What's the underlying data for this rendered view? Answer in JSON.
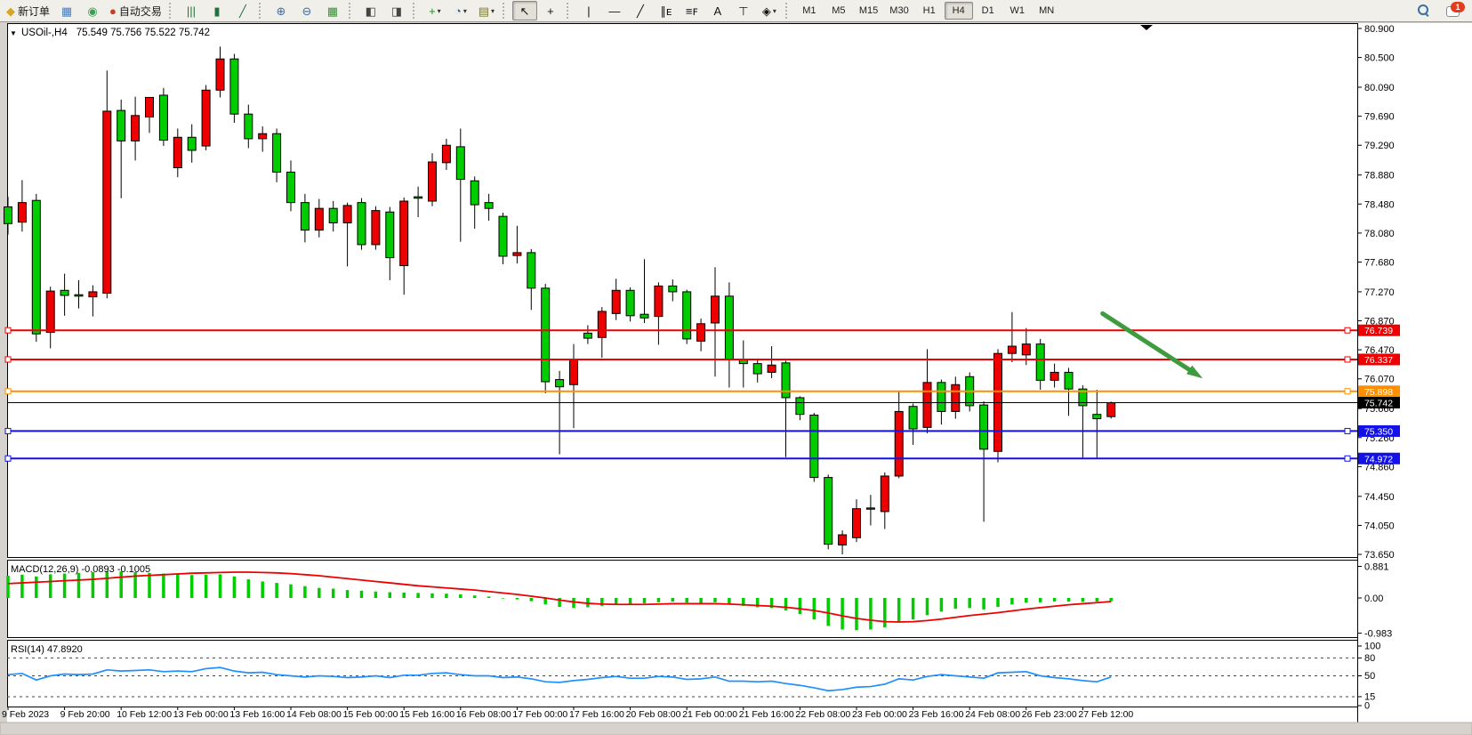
{
  "toolbar": {
    "items": [
      {
        "name": "new-order",
        "glyph": "◆",
        "color": "#d9a520",
        "label": "新订单"
      },
      {
        "name": "market-watch",
        "glyph": "▦",
        "color": "#4a7ebb"
      },
      {
        "name": "data-signal",
        "glyph": "◉",
        "color": "#3aa153"
      },
      {
        "name": "auto-trading",
        "glyph": "●",
        "color": "#cc3a22",
        "label": "自动交易"
      },
      {
        "sep": true
      },
      {
        "name": "bar-chart",
        "glyph": "|||",
        "color": "#20733e"
      },
      {
        "name": "candlestick-chart",
        "glyph": "▮",
        "color": "#20733e"
      },
      {
        "name": "line-chart",
        "glyph": "╱",
        "color": "#20733e"
      },
      {
        "sep": true
      },
      {
        "name": "zoom-in",
        "glyph": "⊕",
        "color": "#3a6ea5"
      },
      {
        "name": "zoom-out",
        "glyph": "⊖",
        "color": "#3a6ea5"
      },
      {
        "name": "tile-windows",
        "glyph": "▦",
        "color": "#3f8a3f"
      },
      {
        "sep": true
      },
      {
        "name": "auto-scroll",
        "glyph": "◧",
        "color": "#444444"
      },
      {
        "name": "chart-shift",
        "glyph": "◨",
        "color": "#444444"
      },
      {
        "sep": true
      },
      {
        "name": "add-indicator",
        "glyph": "+",
        "color": "#169416",
        "dropdown": true
      },
      {
        "name": "period-selector",
        "glyph": "◔",
        "color": "#2f5faa",
        "dropdown": true
      },
      {
        "name": "chart-template",
        "glyph": "▤",
        "color": "#777733",
        "dropdown": true
      },
      {
        "sep": true
      },
      {
        "name": "cursor-tool",
        "glyph": "↖",
        "color": "#111111",
        "pressed": true
      },
      {
        "name": "crosshair-tool",
        "glyph": "+",
        "color": "#111111"
      },
      {
        "sep": true
      },
      {
        "name": "vertical-line-tool",
        "glyph": "|",
        "color": "#111111"
      },
      {
        "name": "horizontal-line-tool",
        "glyph": "—",
        "color": "#111111"
      },
      {
        "name": "trendline-tool",
        "glyph": "╱",
        "color": "#111111"
      },
      {
        "name": "channel-tool",
        "glyph": "∥ᴇ",
        "color": "#111111"
      },
      {
        "name": "fibonacci-tool",
        "glyph": "≡ꜰ",
        "color": "#111111"
      },
      {
        "name": "text-tool",
        "glyph": "A",
        "color": "#111111"
      },
      {
        "name": "text-label-tool",
        "glyph": "⊤",
        "color": "#111111"
      },
      {
        "name": "shapes-tool",
        "glyph": "◈",
        "color": "#111111",
        "dropdown": true
      },
      {
        "sep": true
      }
    ],
    "timeframes": [
      "M1",
      "M5",
      "M15",
      "M30",
      "H1",
      "H4",
      "D1",
      "W1",
      "MN"
    ],
    "active_timeframe": "H4",
    "notification_badge": "1"
  },
  "chart_data": {
    "type": "candlestick",
    "symbol_period": "USOil-,H4",
    "ohlc_display": "75.549 75.756 75.522 75.742",
    "up_color": "#ee0000",
    "down_color": "#00cc00",
    "wick_color": "#000000",
    "price_axis_ticks": [
      80.9,
      80.5,
      80.09,
      79.69,
      79.29,
      78.88,
      78.48,
      78.08,
      77.68,
      77.27,
      76.87,
      76.47,
      76.07,
      75.66,
      75.26,
      74.86,
      74.45,
      74.05,
      73.65
    ],
    "time_axis_labels": [
      "9 Feb 2023",
      "9 Feb 20:00",
      "10 Feb 12:00",
      "13 Feb 00:00",
      "13 Feb 16:00",
      "14 Feb 08:00",
      "15 Feb 00:00",
      "15 Feb 16:00",
      "16 Feb 08:00",
      "17 Feb 00:00",
      "17 Feb 16:00",
      "20 Feb 08:00",
      "21 Feb 00:00",
      "21 Feb 16:00",
      "22 Feb 08:00",
      "23 Feb 00:00",
      "23 Feb 16:00",
      "24 Feb 08:00",
      "26 Feb 23:00",
      "27 Feb 12:00"
    ],
    "candles": [
      [
        78.44,
        78.58,
        78.06,
        78.21
      ],
      [
        78.23,
        78.81,
        78.1,
        78.5
      ],
      [
        78.53,
        78.62,
        76.58,
        76.69
      ],
      [
        76.71,
        77.34,
        76.49,
        77.28
      ],
      [
        77.29,
        77.52,
        76.94,
        77.22
      ],
      [
        77.23,
        77.43,
        77.04,
        77.21
      ],
      [
        77.2,
        77.36,
        76.93,
        77.27
      ],
      [
        77.25,
        80.32,
        77.18,
        79.76
      ],
      [
        79.77,
        79.92,
        78.56,
        79.35
      ],
      [
        79.35,
        79.96,
        79.08,
        79.7
      ],
      [
        79.68,
        79.94,
        79.46,
        79.95
      ],
      [
        79.98,
        80.08,
        79.28,
        79.36
      ],
      [
        78.98,
        79.52,
        78.85,
        79.4
      ],
      [
        79.4,
        79.58,
        79.05,
        79.22
      ],
      [
        79.28,
        80.12,
        79.22,
        80.05
      ],
      [
        80.05,
        80.65,
        79.95,
        80.48
      ],
      [
        80.48,
        80.55,
        79.6,
        79.72
      ],
      [
        79.72,
        79.85,
        79.25,
        79.38
      ],
      [
        79.38,
        79.55,
        79.2,
        79.45
      ],
      [
        79.45,
        79.52,
        78.78,
        78.92
      ],
      [
        78.92,
        79.08,
        78.38,
        78.5
      ],
      [
        78.5,
        78.62,
        77.95,
        78.12
      ],
      [
        78.12,
        78.55,
        78.02,
        78.42
      ],
      [
        78.42,
        78.52,
        78.1,
        78.22
      ],
      [
        78.22,
        78.5,
        77.62,
        78.46
      ],
      [
        78.5,
        78.56,
        77.85,
        77.92
      ],
      [
        77.92,
        78.45,
        77.85,
        78.39
      ],
      [
        78.37,
        78.44,
        77.43,
        77.74
      ],
      [
        77.63,
        78.57,
        77.23,
        78.52
      ],
      [
        78.58,
        78.72,
        78.3,
        78.56
      ],
      [
        78.52,
        79.18,
        78.45,
        79.06
      ],
      [
        79.05,
        79.38,
        78.95,
        79.29
      ],
      [
        79.27,
        79.52,
        77.96,
        78.82
      ],
      [
        78.8,
        78.86,
        78.14,
        78.47
      ],
      [
        78.5,
        78.62,
        78.25,
        78.42
      ],
      [
        78.31,
        78.36,
        77.65,
        77.76
      ],
      [
        77.77,
        78.18,
        77.66,
        77.81
      ],
      [
        77.81,
        77.86,
        77.02,
        77.32
      ],
      [
        77.32,
        77.38,
        75.87,
        76.03
      ],
      [
        76.06,
        76.18,
        75.03,
        75.96
      ],
      [
        75.99,
        76.55,
        75.39,
        76.33
      ],
      [
        76.7,
        76.81,
        76.55,
        76.63
      ],
      [
        76.64,
        77.06,
        76.36,
        77.0
      ],
      [
        76.97,
        77.45,
        76.88,
        77.29
      ],
      [
        77.29,
        77.33,
        76.86,
        76.94
      ],
      [
        76.96,
        77.72,
        76.84,
        76.91
      ],
      [
        76.93,
        77.4,
        76.54,
        77.35
      ],
      [
        77.35,
        77.44,
        77.14,
        77.27
      ],
      [
        77.27,
        77.3,
        76.55,
        76.62
      ],
      [
        76.59,
        76.9,
        76.45,
        76.83
      ],
      [
        76.84,
        77.61,
        76.1,
        77.21
      ],
      [
        77.21,
        77.4,
        75.95,
        76.33
      ],
      [
        76.33,
        76.6,
        75.95,
        76.28
      ],
      [
        76.28,
        76.35,
        76.02,
        76.14
      ],
      [
        76.16,
        76.52,
        76.08,
        76.26
      ],
      [
        76.29,
        76.32,
        74.99,
        75.81
      ],
      [
        75.81,
        75.83,
        75.5,
        75.58
      ],
      [
        75.57,
        75.6,
        74.65,
        74.71
      ],
      [
        74.71,
        74.75,
        73.72,
        73.79
      ],
      [
        73.78,
        73.98,
        73.65,
        73.92
      ],
      [
        73.88,
        74.41,
        73.82,
        74.28
      ],
      [
        74.28,
        74.47,
        74.05,
        74.29
      ],
      [
        74.24,
        74.78,
        74.0,
        74.73
      ],
      [
        74.73,
        75.9,
        74.7,
        75.62
      ],
      [
        75.69,
        75.73,
        75.16,
        75.38
      ],
      [
        75.4,
        76.48,
        75.32,
        76.02
      ],
      [
        76.02,
        76.06,
        75.44,
        75.62
      ],
      [
        75.62,
        76.1,
        75.52,
        75.99
      ],
      [
        76.1,
        76.16,
        75.62,
        75.7
      ],
      [
        75.71,
        75.76,
        74.1,
        75.1
      ],
      [
        75.07,
        76.48,
        74.92,
        76.42
      ],
      [
        76.42,
        76.99,
        76.3,
        76.52
      ],
      [
        76.4,
        76.77,
        76.26,
        76.55
      ],
      [
        76.55,
        76.62,
        75.92,
        76.05
      ],
      [
        76.05,
        76.28,
        75.95,
        76.16
      ],
      [
        76.16,
        76.22,
        75.56,
        75.93
      ],
      [
        75.93,
        75.98,
        74.98,
        75.7
      ],
      [
        75.58,
        75.92,
        74.97,
        75.52
      ],
      [
        75.549,
        75.756,
        75.522,
        75.742
      ]
    ],
    "hlines": [
      {
        "price": 76.739,
        "color": "#ee0000",
        "label": "76.739"
      },
      {
        "price": 76.337,
        "color": "#ee0000",
        "label": "76.337"
      },
      {
        "price": 75.898,
        "color": "#ff8f00",
        "label": "75.898"
      },
      {
        "price": 75.35,
        "color": "#1212e8",
        "label": "75.350"
      },
      {
        "price": 74.972,
        "color": "#1212e8",
        "label": "74.972"
      }
    ],
    "price_line": {
      "price": 75.742,
      "color": "#000000",
      "label": "75.742"
    },
    "arrow": {
      "i1": 77.4,
      "p1": 76.97,
      "i2": 83.9,
      "p2": 76.15,
      "color": "#3e9b3e"
    },
    "macd": {
      "label": "MACD(12,26,9)",
      "values_text": "-0.0893 -0.1005",
      "axis_ticks": [
        {
          "v": 0.881,
          "t": "0.881"
        },
        {
          "v": 0,
          "t": "0.00"
        },
        {
          "v": -0.983,
          "t": "-0.983"
        }
      ],
      "histogram_color": "#00cc00",
      "signal_color": "#ee0000",
      "histogram": [
        0.62,
        0.65,
        0.6,
        0.66,
        0.68,
        0.7,
        0.72,
        0.75,
        0.74,
        0.72,
        0.7,
        0.68,
        0.66,
        0.64,
        0.65,
        0.66,
        0.6,
        0.52,
        0.46,
        0.42,
        0.38,
        0.33,
        0.28,
        0.26,
        0.22,
        0.2,
        0.18,
        0.16,
        0.15,
        0.14,
        0.13,
        0.12,
        0.1,
        0.07,
        0.04,
        0.0,
        -0.04,
        -0.09,
        -0.18,
        -0.25,
        -0.28,
        -0.26,
        -0.22,
        -0.18,
        -0.16,
        -0.15,
        -0.12,
        -0.1,
        -0.13,
        -0.14,
        -0.12,
        -0.18,
        -0.22,
        -0.26,
        -0.28,
        -0.35,
        -0.45,
        -0.6,
        -0.78,
        -0.88,
        -0.9,
        -0.88,
        -0.82,
        -0.68,
        -0.6,
        -0.48,
        -0.38,
        -0.3,
        -0.28,
        -0.32,
        -0.25,
        -0.18,
        -0.13,
        -0.12,
        -0.1,
        -0.1,
        -0.11,
        -0.1,
        -0.09
      ],
      "signal": [
        0.4,
        0.42,
        0.44,
        0.46,
        0.48,
        0.5,
        0.52,
        0.55,
        0.58,
        0.61,
        0.63,
        0.65,
        0.67,
        0.69,
        0.7,
        0.71,
        0.72,
        0.72,
        0.71,
        0.7,
        0.68,
        0.65,
        0.62,
        0.58,
        0.54,
        0.5,
        0.46,
        0.42,
        0.38,
        0.34,
        0.31,
        0.28,
        0.25,
        0.22,
        0.18,
        0.14,
        0.1,
        0.05,
        0.0,
        -0.06,
        -0.11,
        -0.15,
        -0.17,
        -0.18,
        -0.18,
        -0.18,
        -0.17,
        -0.16,
        -0.16,
        -0.16,
        -0.16,
        -0.17,
        -0.19,
        -0.21,
        -0.23,
        -0.26,
        -0.3,
        -0.35,
        -0.42,
        -0.5,
        -0.57,
        -0.62,
        -0.66,
        -0.67,
        -0.66,
        -0.63,
        -0.59,
        -0.54,
        -0.49,
        -0.45,
        -0.41,
        -0.36,
        -0.31,
        -0.27,
        -0.23,
        -0.19,
        -0.16,
        -0.13,
        -0.1
      ]
    },
    "rsi": {
      "label": "RSI(14)",
      "value_text": "47.8920",
      "line_color": "#1e90ff",
      "levels": [
        80,
        50,
        15
      ],
      "axis_ticks": [
        {
          "v": 100,
          "t": "100"
        },
        {
          "v": 80,
          "t": "80"
        },
        {
          "v": 50,
          "t": "50"
        },
        {
          "v": 15,
          "t": "15"
        },
        {
          "v": 0,
          "t": "0"
        }
      ],
      "values": [
        52,
        54,
        43,
        50,
        53,
        52,
        53,
        60,
        58,
        59,
        60,
        57,
        58,
        57,
        62,
        64,
        58,
        55,
        56,
        52,
        50,
        48,
        50,
        49,
        47,
        48,
        50,
        47,
        51,
        51,
        54,
        55,
        52,
        50,
        50,
        47,
        48,
        45,
        40,
        39,
        42,
        44,
        47,
        49,
        46,
        46,
        49,
        48,
        44,
        45,
        48,
        41,
        41,
        40,
        41,
        37,
        34,
        30,
        25,
        27,
        31,
        32,
        36,
        45,
        43,
        49,
        52,
        50,
        48,
        46,
        55,
        56,
        57,
        50,
        47,
        45,
        42,
        40,
        48
      ]
    }
  }
}
